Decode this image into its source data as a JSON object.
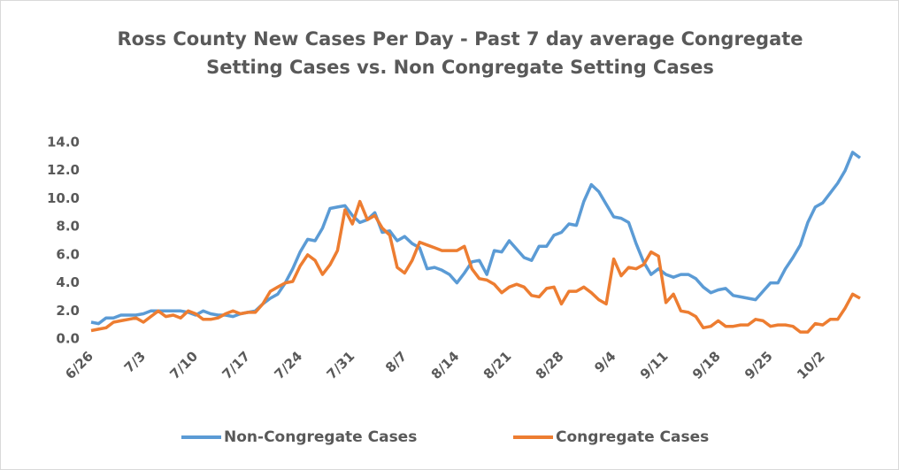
{
  "chart_data": {
    "type": "line",
    "title": "Ross County New Cases Per Day - Past 7 day average Congregate Setting Cases vs. Non Congregate Setting Cases",
    "categories": [
      "6/26",
      null,
      null,
      null,
      null,
      null,
      null,
      "7/3",
      null,
      null,
      null,
      null,
      null,
      null,
      "7/10",
      null,
      null,
      null,
      null,
      null,
      null,
      "7/17",
      null,
      null,
      null,
      null,
      null,
      null,
      "7/24",
      null,
      null,
      null,
      null,
      null,
      null,
      "7/31",
      null,
      null,
      null,
      null,
      null,
      null,
      "8/7",
      null,
      null,
      null,
      null,
      null,
      null,
      "8/14",
      null,
      null,
      null,
      null,
      null,
      null,
      "8/21",
      null,
      null,
      null,
      null,
      null,
      null,
      "8/28",
      null,
      null,
      null,
      null,
      null,
      null,
      "9/4",
      null,
      null,
      null,
      null,
      null,
      null,
      "9/11",
      null,
      null,
      null,
      null,
      null,
      null,
      "9/18",
      null,
      null,
      null,
      null,
      null,
      null,
      "9/25",
      null,
      null,
      null,
      null,
      null,
      null,
      "10/2",
      null,
      null,
      null,
      null,
      null
    ],
    "series": [
      {
        "name": "Non-Congregate Cases",
        "color": "#5b9bd5",
        "values": [
          1.2,
          1.1,
          1.5,
          1.5,
          1.7,
          1.7,
          1.7,
          1.8,
          2.0,
          2.0,
          2.0,
          2.0,
          2.0,
          1.9,
          1.7,
          2.0,
          1.8,
          1.7,
          1.7,
          1.6,
          1.8,
          1.9,
          2.0,
          2.5,
          2.9,
          3.2,
          4.0,
          5.0,
          6.2,
          7.1,
          7.0,
          7.9,
          9.3,
          9.4,
          9.5,
          8.8,
          8.3,
          8.5,
          9.0,
          7.6,
          7.7,
          7.0,
          7.3,
          6.8,
          6.5,
          5.0,
          5.1,
          4.9,
          4.6,
          4.0,
          4.7,
          5.5,
          5.6,
          4.6,
          6.3,
          6.2,
          7.0,
          6.4,
          5.8,
          5.6,
          6.6,
          6.6,
          7.4,
          7.6,
          8.2,
          8.1,
          9.8,
          11.0,
          10.5,
          9.6,
          8.7,
          8.6,
          8.3,
          6.8,
          5.5,
          4.6,
          5.0,
          4.6,
          4.4,
          4.6,
          4.6,
          4.3,
          3.7,
          3.3,
          3.5,
          3.6,
          3.1,
          3.0,
          2.9,
          2.8,
          3.4,
          4.0,
          4.0,
          5.0,
          5.8,
          6.7,
          8.3,
          9.4,
          9.7,
          10.4,
          11.1,
          12.0,
          13.3,
          12.9
        ]
      },
      {
        "name": "Congregate Cases",
        "color": "#ed7d31",
        "values": [
          0.6,
          0.7,
          0.8,
          1.2,
          1.3,
          1.4,
          1.5,
          1.2,
          1.6,
          2.0,
          1.6,
          1.7,
          1.5,
          2.0,
          1.8,
          1.4,
          1.4,
          1.5,
          1.8,
          2.0,
          1.8,
          1.9,
          1.9,
          2.5,
          3.4,
          3.7,
          4.0,
          4.1,
          5.2,
          6.0,
          5.6,
          4.6,
          5.3,
          6.3,
          9.2,
          8.2,
          9.8,
          8.5,
          8.8,
          7.9,
          7.4,
          5.1,
          4.7,
          5.6,
          6.9,
          6.7,
          6.5,
          6.3,
          6.3,
          6.3,
          6.6,
          5.0,
          4.3,
          4.2,
          3.9,
          3.3,
          3.7,
          3.9,
          3.7,
          3.1,
          3.0,
          3.6,
          3.7,
          2.5,
          3.4,
          3.4,
          3.7,
          3.3,
          2.8,
          2.5,
          5.7,
          4.5,
          5.1,
          5.0,
          5.3,
          6.2,
          5.9,
          2.6,
          3.2,
          2.0,
          1.9,
          1.6,
          0.8,
          0.9,
          1.3,
          0.9,
          0.9,
          1.0,
          1.0,
          1.4,
          1.3,
          0.9,
          1.0,
          1.0,
          0.9,
          0.5,
          0.5,
          1.1,
          1.0,
          1.4,
          1.4,
          2.2,
          3.2,
          2.9
        ]
      }
    ],
    "ylim": [
      0,
      14
    ],
    "yticks": [
      {
        "value": 0,
        "label": "0.0"
      },
      {
        "value": 2,
        "label": "2.0"
      },
      {
        "value": 4,
        "label": "4.0"
      },
      {
        "value": 6,
        "label": "6.0"
      },
      {
        "value": 8,
        "label": "8.0"
      },
      {
        "value": 10,
        "label": "10.0"
      },
      {
        "value": 12,
        "label": "12.0"
      },
      {
        "value": 14,
        "label": "14.0"
      }
    ],
    "grid": false,
    "legend": "bottom"
  }
}
